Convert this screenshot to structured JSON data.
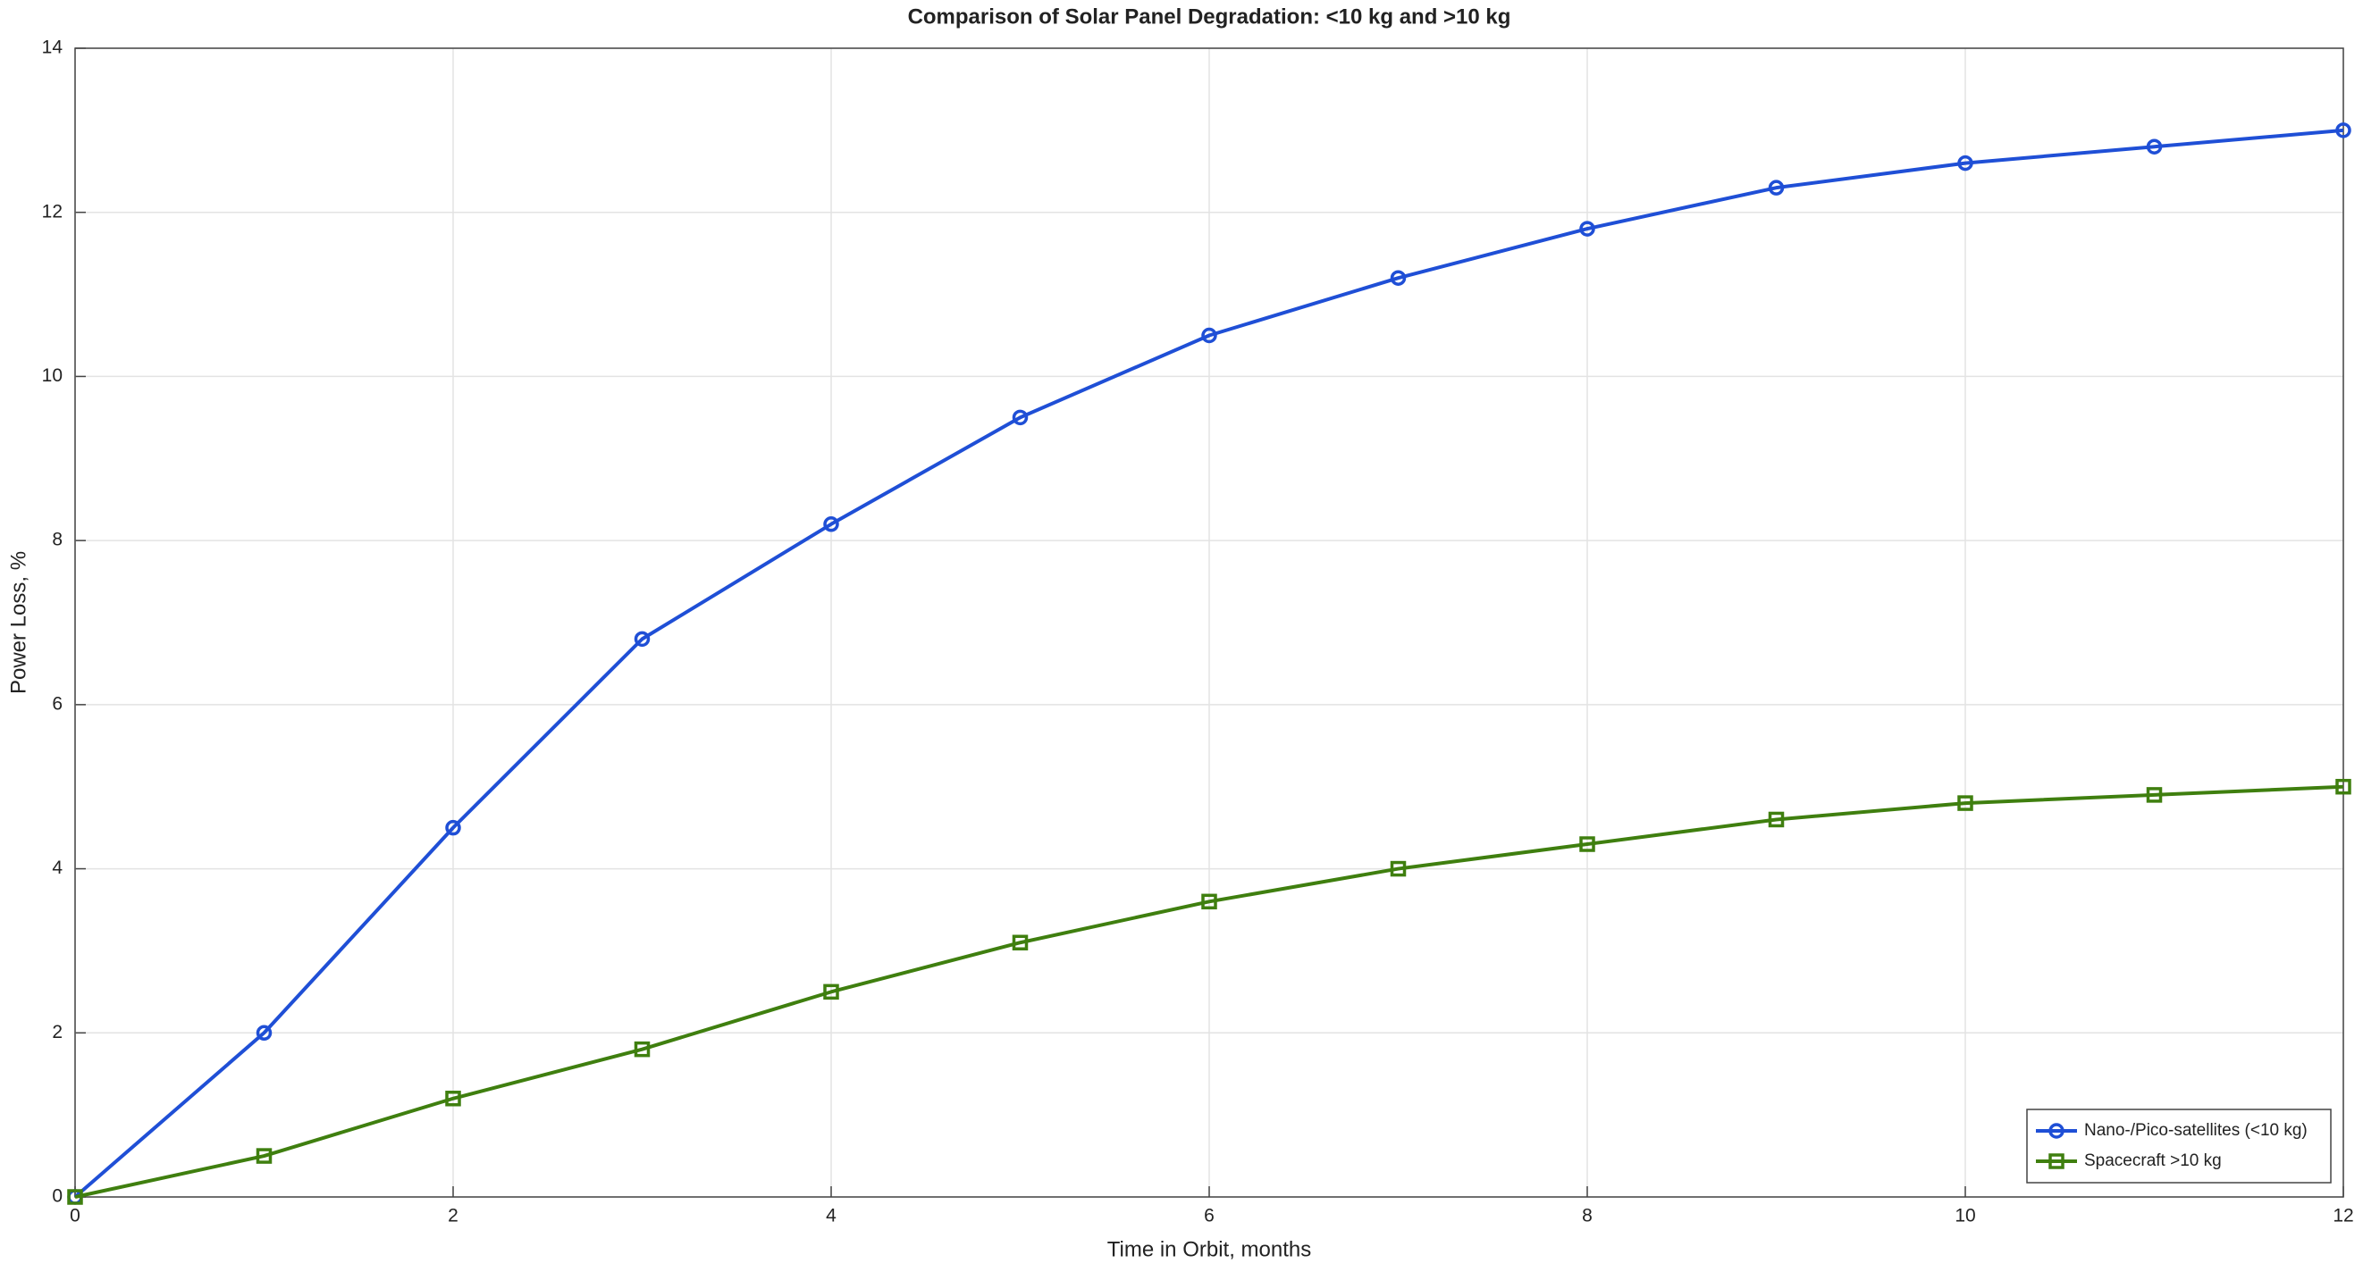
{
  "chart_data": {
    "type": "line",
    "title": "Comparison of Solar Panel Degradation: <10 kg and >10 kg",
    "xlabel": "Time in Orbit, months",
    "ylabel": "Power Loss, %",
    "x": [
      0,
      1,
      2,
      3,
      4,
      5,
      6,
      7,
      8,
      9,
      10,
      11,
      12
    ],
    "series": [
      {
        "name": "Nano-/Pico-satellites (<10 kg)",
        "color": "#1f4fd6",
        "marker": "circle",
        "values": [
          0,
          2,
          4.5,
          6.8,
          8.2,
          9.5,
          10.5,
          11.2,
          11.8,
          12.3,
          12.6,
          12.8,
          13
        ]
      },
      {
        "name": "Spacecraft >10 kg",
        "color": "#3f7f0f",
        "marker": "square",
        "values": [
          0,
          0.5,
          1.2,
          1.8,
          2.5,
          3.1,
          3.6,
          4.0,
          4.3,
          4.6,
          4.8,
          4.9,
          5.0
        ]
      }
    ],
    "xlim": [
      0,
      12
    ],
    "xticks": [
      0,
      2,
      4,
      6,
      8,
      10,
      12
    ],
    "ylim": [
      0,
      14
    ],
    "yticks": [
      0,
      2,
      4,
      6,
      8,
      10,
      12,
      14
    ],
    "grid": true,
    "legend": "lower right"
  }
}
